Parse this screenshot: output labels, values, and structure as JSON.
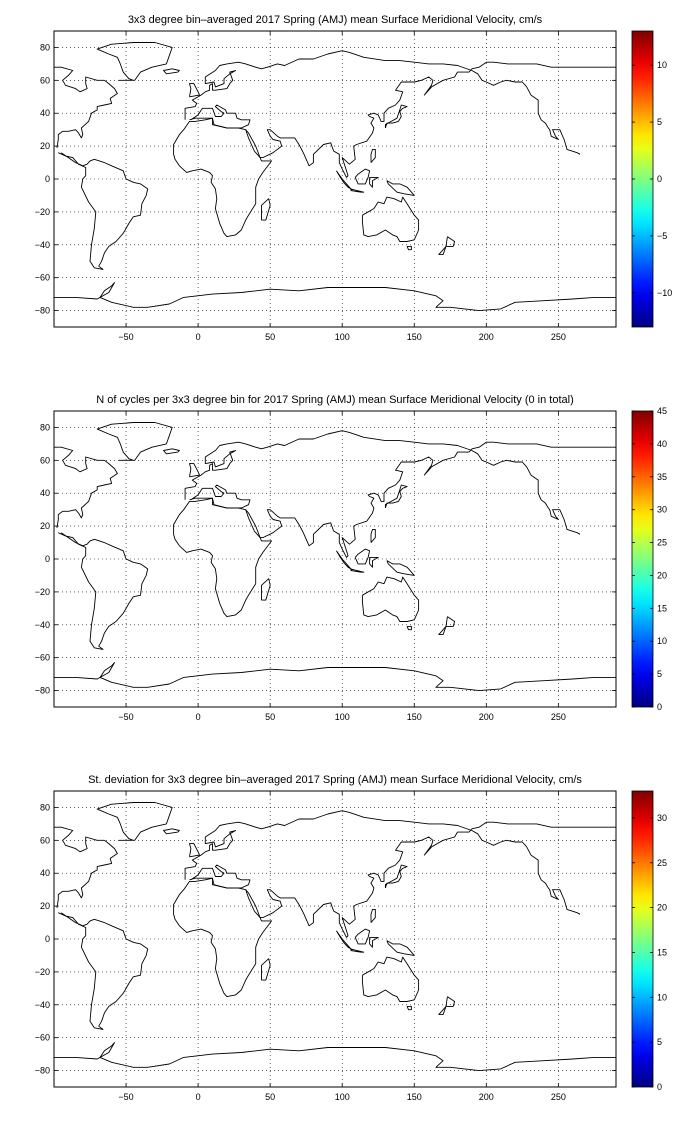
{
  "panels": [
    {
      "title": "3x3 degree bin–averaged 2017 Spring (AMJ) mean Surface Meridional Velocity, cm/s",
      "colorbar": {
        "min": -13,
        "max": 13,
        "ticks": [
          -10,
          -5,
          0,
          5,
          10
        ]
      }
    },
    {
      "title": "N of cycles per 3x3 degree bin for 2017 Spring (AMJ) mean Surface Meridional Velocity (0 in total)",
      "colorbar": {
        "min": 0,
        "max": 45,
        "ticks": [
          0,
          5,
          10,
          15,
          20,
          25,
          30,
          35,
          40,
          45
        ]
      }
    },
    {
      "title": "St. deviation for 3x3 degree bin–averaged 2017 Spring (AMJ) mean Surface Meridional Velocity, cm/s",
      "colorbar": {
        "min": 0,
        "max": 33,
        "ticks": [
          0,
          5,
          10,
          15,
          20,
          25,
          30
        ]
      }
    }
  ],
  "map_axes": {
    "xlim": [
      -100,
      290
    ],
    "ylim": [
      -90,
      90
    ],
    "xticks": [
      -50,
      0,
      50,
      100,
      150,
      200,
      250
    ],
    "yticks": [
      -80,
      -60,
      -40,
      -20,
      0,
      20,
      40,
      60,
      80
    ],
    "grid": "dotted"
  },
  "colormap": "jet"
}
